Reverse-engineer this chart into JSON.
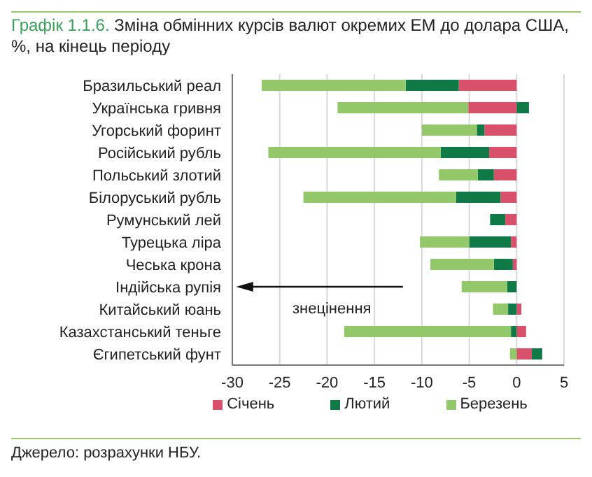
{
  "chart_data": {
    "type": "bar",
    "orientation": "horizontal",
    "stacked": true,
    "title": "Графік 1.1.6.",
    "subtitle": "Зміна обмінних курсів валют окремих ЕМ до долара США, %, на кінець періоду",
    "categories": [
      "Бразильський реал",
      "Українська гривня",
      "Угорський форинт",
      "Російський рубль",
      "Польський злотий",
      "Білоруський рубль",
      "Румунський лей",
      "Турецька ліра",
      "Чеська крона",
      "Індійська рупія",
      "Китайський юань",
      "Казахстанський теньге",
      "Єгипетський фунт"
    ],
    "series": [
      {
        "name": "Січень",
        "color": "#d9506a",
        "values": [
          -6.1,
          -5.1,
          -3.4,
          -2.9,
          -2.4,
          -1.7,
          -1.2,
          -0.6,
          -0.4,
          null,
          0.5,
          1.0,
          1.6
        ]
      },
      {
        "name": "Лютий",
        "color": "#0f7a45",
        "values": [
          -5.6,
          1.3,
          -0.8,
          -5.1,
          -1.7,
          -4.7,
          -1.6,
          -4.4,
          -2.0,
          -1.0,
          -0.9,
          -0.6,
          1.1
        ]
      },
      {
        "name": "Березень",
        "color": "#92c86a",
        "values": [
          -15.2,
          -13.8,
          -5.8,
          -18.2,
          -4.1,
          -16.1,
          null,
          -5.2,
          -6.7,
          -4.8,
          -1.6,
          -17.6,
          -0.7
        ]
      }
    ],
    "xlim": [
      -30,
      5
    ],
    "xticks": [
      -30,
      -25,
      -20,
      -15,
      -10,
      -5,
      0,
      5
    ],
    "grid": "x",
    "legend": "bottom",
    "annotations": [
      "знецінення",
      "Джерело: розрахунки НБУ."
    ]
  }
}
